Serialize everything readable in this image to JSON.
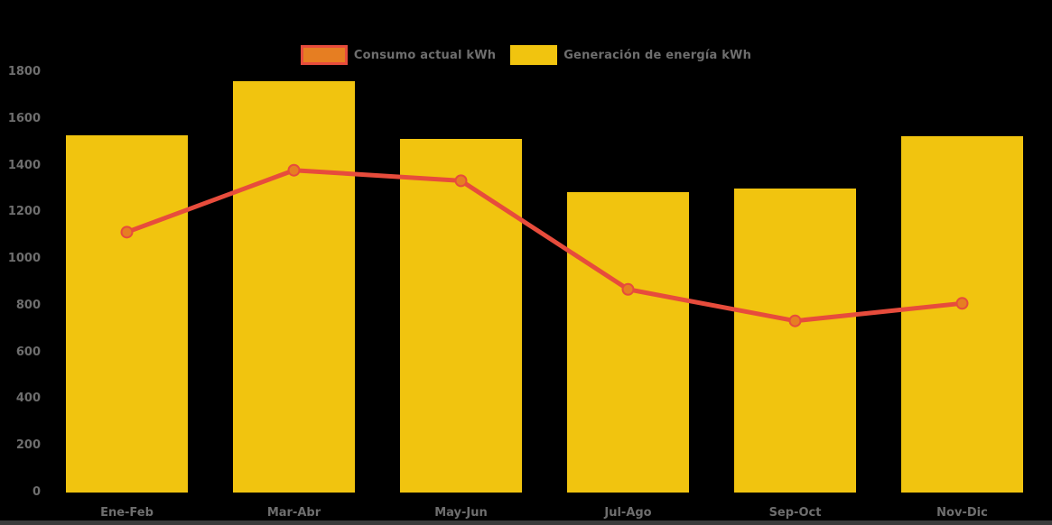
{
  "chart_data": {
    "type": "bar",
    "subtype": "bar-and-line-combo",
    "categories": [
      "Ene-Feb",
      "Mar-Abr",
      "May-Jun",
      "Jul-Ago",
      "Sep-Oct",
      "Nov-Dic"
    ],
    "series": [
      {
        "name": "Consumo actual kWh",
        "type": "line",
        "values": [
          1115,
          1380,
          1335,
          870,
          735,
          810
        ],
        "line_color": "#e74c3c",
        "point_fill_color": "#e67e22",
        "point_border_color": "#e74c3c"
      },
      {
        "name": "Generación de energía kWh",
        "type": "bar",
        "values": [
          1530,
          1760,
          1515,
          1285,
          1300,
          1525
        ],
        "bar_color": "#f1c40f"
      }
    ],
    "title": "",
    "xlabel": "",
    "ylabel": "",
    "ylim": [
      0,
      1800
    ],
    "yticks": [
      0,
      200,
      400,
      600,
      800,
      1000,
      1200,
      1400,
      1600,
      1800
    ],
    "grid": false,
    "legend_position": "top",
    "background_color": "#000000",
    "axis_label_color": "#6e6e6e",
    "bottom_strip_color": "#3a3a3a"
  }
}
